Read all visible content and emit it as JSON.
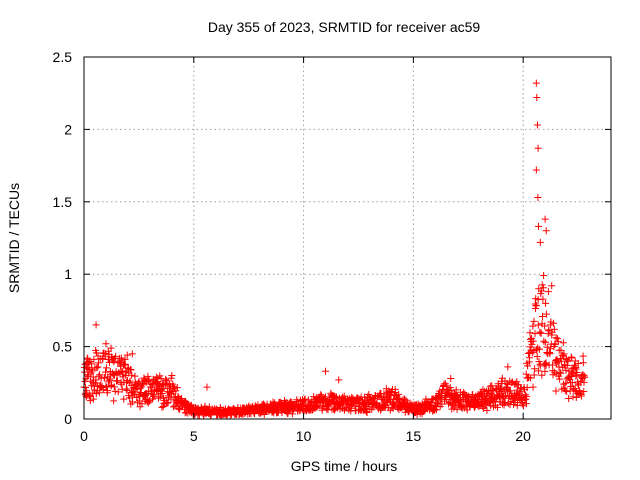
{
  "chart_data": {
    "type": "scatter",
    "title": "Day 355 of 2023, SRMTID for receiver ac59",
    "xlabel": "GPS time / hours",
    "ylabel": "SRMTID / TECUs",
    "xlim": [
      0,
      24
    ],
    "ylim": [
      0,
      2.5
    ],
    "xticks": [
      "0",
      "5",
      "10",
      "15",
      "20"
    ],
    "yticks": [
      "0",
      "0.5",
      "1",
      "1.5",
      "2",
      "2.5"
    ],
    "xtick_values": [
      0,
      5,
      10,
      15,
      20
    ],
    "ytick_values": [
      0,
      0.5,
      1,
      1.5,
      2,
      2.5
    ],
    "grid": true,
    "marker": "+",
    "series": [
      {
        "name": "SRMTID",
        "color": "#ff0000",
        "baseline_profile": {
          "x": [
            0,
            0.5,
            1,
            1.5,
            2,
            2.5,
            3,
            3.5,
            4,
            4.5,
            5,
            6,
            7,
            8,
            9,
            10,
            11,
            12,
            13,
            14,
            15,
            16,
            16.5,
            17,
            18,
            19,
            19.5,
            20,
            20.5,
            21,
            21.5,
            22,
            22.5,
            22.8
          ],
          "y": [
            0.25,
            0.3,
            0.32,
            0.3,
            0.28,
            0.18,
            0.2,
            0.2,
            0.18,
            0.09,
            0.06,
            0.05,
            0.05,
            0.07,
            0.08,
            0.09,
            0.13,
            0.1,
            0.11,
            0.14,
            0.07,
            0.1,
            0.2,
            0.12,
            0.12,
            0.18,
            0.18,
            0.15,
            0.55,
            0.65,
            0.42,
            0.28,
            0.25,
            0.3
          ]
        },
        "peaks": [
          {
            "x": 0.15,
            "y": 0.42
          },
          {
            "x": 0.55,
            "y": 0.65
          },
          {
            "x": 1.0,
            "y": 0.52
          },
          {
            "x": 1.7,
            "y": 0.42
          },
          {
            "x": 2.2,
            "y": 0.45
          },
          {
            "x": 4.0,
            "y": 0.3
          },
          {
            "x": 5.6,
            "y": 0.22
          },
          {
            "x": 11.0,
            "y": 0.33
          },
          {
            "x": 11.6,
            "y": 0.27
          },
          {
            "x": 16.7,
            "y": 0.28
          },
          {
            "x": 19.3,
            "y": 0.36
          },
          {
            "x": 20.6,
            "y": 2.32
          },
          {
            "x": 20.62,
            "y": 2.22
          },
          {
            "x": 20.65,
            "y": 2.03
          },
          {
            "x": 20.68,
            "y": 1.87
          },
          {
            "x": 20.6,
            "y": 1.72
          },
          {
            "x": 20.67,
            "y": 1.53
          },
          {
            "x": 20.7,
            "y": 1.33
          },
          {
            "x": 20.78,
            "y": 1.22
          },
          {
            "x": 21.0,
            "y": 1.38
          },
          {
            "x": 21.05,
            "y": 1.3
          },
          {
            "x": 21.3,
            "y": 0.92
          },
          {
            "x": 21.25,
            "y": 0.65
          }
        ]
      }
    ]
  }
}
